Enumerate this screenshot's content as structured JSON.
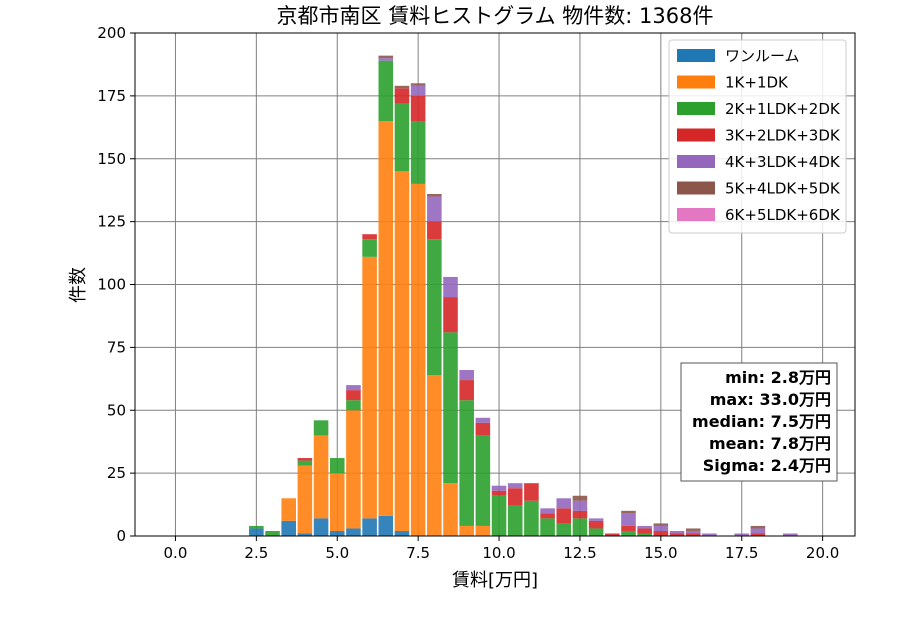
{
  "chart_data": {
    "type": "bar",
    "stacked": true,
    "title": "京都市南区 賃料ヒストグラム 物件数: 1368件",
    "xlabel": "賃料[万円]",
    "ylabel": "件数",
    "xlim": [
      -1.25,
      21.0
    ],
    "ylim": [
      0,
      200
    ],
    "grid": true,
    "legend_position": "top-right",
    "bin_width": 0.5,
    "x_ticks": [
      {
        "value": 0.0,
        "label": "0.0"
      },
      {
        "value": 2.5,
        "label": "2.5"
      },
      {
        "value": 5.0,
        "label": "5.0"
      },
      {
        "value": 7.5,
        "label": "7.5"
      },
      {
        "value": 10.0,
        "label": "10.0"
      },
      {
        "value": 12.5,
        "label": "12.5"
      },
      {
        "value": 15.0,
        "label": "15.0"
      },
      {
        "value": 17.5,
        "label": "17.5"
      },
      {
        "value": 20.0,
        "label": "20.0"
      }
    ],
    "y_ticks": [
      {
        "value": 0,
        "label": "0"
      },
      {
        "value": 25,
        "label": "25"
      },
      {
        "value": 50,
        "label": "50"
      },
      {
        "value": 75,
        "label": "75"
      },
      {
        "value": 100,
        "label": "100"
      },
      {
        "value": 125,
        "label": "125"
      },
      {
        "value": 150,
        "label": "150"
      },
      {
        "value": 175,
        "label": "175"
      },
      {
        "value": 200,
        "label": "200"
      }
    ],
    "x": [
      2.5,
      3.0,
      3.5,
      4.0,
      4.5,
      5.0,
      5.5,
      6.0,
      6.5,
      7.0,
      7.5,
      8.0,
      8.5,
      9.0,
      9.5,
      10.0,
      10.5,
      11.0,
      11.5,
      12.0,
      12.5,
      13.0,
      13.5,
      14.0,
      14.5,
      15.0,
      15.5,
      16.0,
      16.5,
      17.0,
      17.5,
      18.0,
      18.5,
      19.0,
      19.5
    ],
    "series": [
      {
        "name": "ワンルーム",
        "color": "#1f77b4",
        "values": [
          3,
          0,
          6,
          1,
          7,
          2,
          3,
          7,
          8,
          2,
          0,
          0,
          0,
          0,
          0,
          0,
          0,
          0,
          0,
          0,
          0,
          0,
          0,
          0,
          0,
          0,
          0,
          0,
          0,
          0,
          0,
          0,
          0,
          0,
          0
        ]
      },
      {
        "name": "1K+1DK",
        "color": "#ff7f0e",
        "values": [
          0,
          0,
          9,
          27,
          33,
          23,
          47,
          104,
          157,
          143,
          140,
          64,
          21,
          4,
          4,
          0,
          0,
          0,
          0,
          0,
          0,
          0,
          0,
          0,
          0,
          0,
          0,
          0,
          0,
          0,
          0,
          0,
          0,
          0,
          0
        ]
      },
      {
        "name": "2K+1LDK+2DK",
        "color": "#2ca02c",
        "values": [
          1,
          2,
          0,
          2,
          6,
          6,
          4,
          7,
          24,
          27,
          25,
          54,
          60,
          50,
          36,
          16,
          12,
          14,
          7,
          5,
          7,
          3,
          0,
          2,
          1,
          0,
          0,
          0,
          0,
          0,
          0,
          0,
          0,
          0,
          0
        ]
      },
      {
        "name": "3K+2LDK+3DK",
        "color": "#d62728",
        "values": [
          0,
          0,
          0,
          1,
          0,
          0,
          4,
          2,
          0,
          6,
          10,
          7,
          14,
          8,
          5,
          2,
          7,
          7,
          2,
          6,
          3,
          3,
          1,
          2,
          2,
          2,
          1,
          1,
          0,
          0,
          0,
          1,
          0,
          0,
          0
        ]
      },
      {
        "name": "4K+3LDK+4DK",
        "color": "#9467bd",
        "values": [
          0,
          0,
          0,
          0,
          0,
          0,
          2,
          0,
          1,
          0,
          4,
          10,
          8,
          4,
          2,
          2,
          2,
          0,
          2,
          4,
          4,
          1,
          0,
          5,
          1,
          2,
          1,
          1,
          1,
          0,
          1,
          2,
          0,
          1,
          0
        ]
      },
      {
        "name": "5K+4LDK+5DK",
        "color": "#8c564b",
        "values": [
          0,
          0,
          0,
          0,
          0,
          0,
          0,
          0,
          1,
          1,
          1,
          1,
          0,
          0,
          0,
          0,
          0,
          0,
          0,
          0,
          2,
          0,
          0,
          1,
          0,
          1,
          0,
          1,
          0,
          0,
          0,
          1,
          0,
          0,
          0
        ]
      },
      {
        "name": "6K+5LDK+6DK",
        "color": "#e377c2",
        "values": [
          0,
          0,
          0,
          0,
          0,
          0,
          0,
          0,
          0,
          0,
          0,
          0,
          0,
          0,
          0,
          0,
          0,
          0,
          0,
          0,
          0,
          0,
          0,
          0,
          0,
          0,
          0,
          0,
          0,
          0,
          0,
          0,
          0,
          0,
          0
        ]
      }
    ],
    "stats": [
      "min: 2.8万円",
      "max: 33.0万円",
      "median: 7.5万円",
      "mean: 7.8万円",
      "Sigma: 2.4万円"
    ]
  }
}
